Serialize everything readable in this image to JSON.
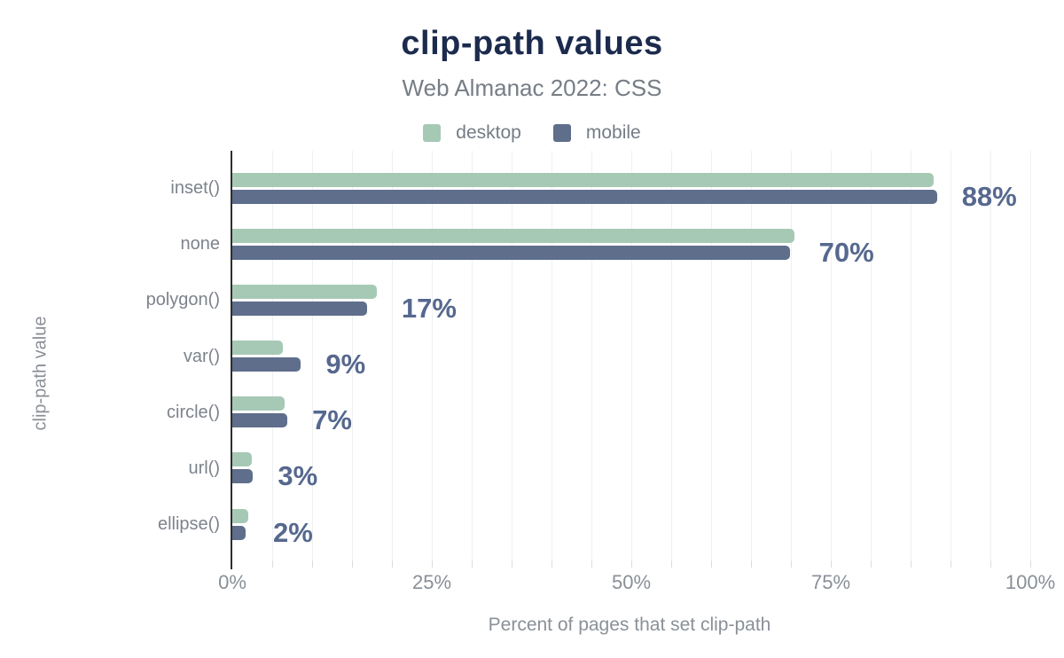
{
  "title": "clip-path values",
  "subtitle": "Web Almanac 2022: CSS",
  "legend": {
    "position": "top",
    "items": [
      {
        "label": "desktop",
        "color": "#a6c9b6"
      },
      {
        "label": "mobile",
        "color": "#5f6e8b"
      }
    ]
  },
  "chart_data": {
    "type": "bar",
    "orientation": "horizontal",
    "title": "clip-path values",
    "subtitle": "Web Almanac 2022: CSS",
    "categories": [
      "inset()",
      "none",
      "polygon()",
      "var()",
      "circle()",
      "url()",
      "ellipse()"
    ],
    "series": [
      {
        "name": "desktop",
        "color": "#a6c9b6",
        "values": [
          87.9,
          70.4,
          18.1,
          6.3,
          6.6,
          2.4,
          2.0
        ]
      },
      {
        "name": "mobile",
        "color": "#5f6e8b",
        "values": [
          88.3,
          69.9,
          16.9,
          8.6,
          6.9,
          2.6,
          1.7
        ]
      }
    ],
    "value_labels": [
      "88%",
      "70%",
      "17%",
      "9%",
      "7%",
      "3%",
      "2%"
    ],
    "xlabel": "Percent of pages that set clip-path",
    "ylabel": "clip-path value",
    "xlim": [
      0,
      100
    ],
    "x_tick_values": [
      0,
      25,
      50,
      75,
      100
    ],
    "x_tick_labels": [
      "0%",
      "25%",
      "50%",
      "75%",
      "100%"
    ],
    "grid": true,
    "grid_step": 5,
    "legend_position": "top"
  },
  "colors": {
    "background": "#ffffff",
    "title": "#1c2b4d",
    "subtitle": "#767d86",
    "legend_text": "#757c85",
    "category_label": "#7d838c",
    "tick_label": "#898f97",
    "axis_title": "#8a9097",
    "value_label": "#56688e",
    "axis_line": "#2e2e2e",
    "gridline": "#eef0f3",
    "tick_mark": "#d9dce1"
  }
}
